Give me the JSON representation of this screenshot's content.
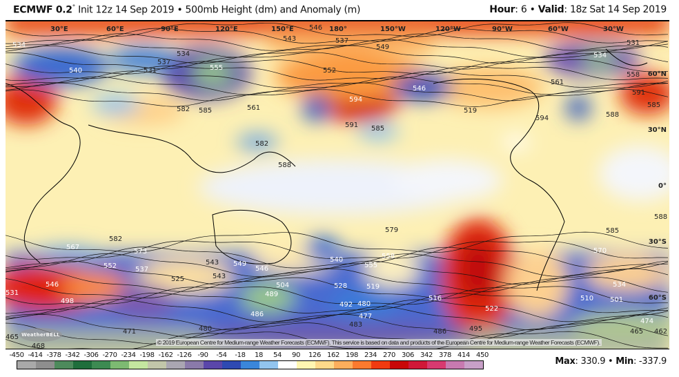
{
  "header": {
    "model": "ECMWF 0.2",
    "degree": "°",
    "init": " Init 12z 14 Sep 2019 • 500mb Height (dm) and Anomaly (m)",
    "hour_label": "Hour",
    "hour_value": ": 6 • ",
    "valid_label": "Valid",
    "valid_value": ": 18z Sat 14 Sep 2019"
  },
  "map": {
    "longitude_labels": [
      "30°E",
      "60°E",
      "90°E",
      "120°E",
      "150°E",
      "180°",
      "150°W",
      "120°W",
      "90°W",
      "60°W",
      "30°W"
    ],
    "latitude_labels": [
      "60°N",
      "30°N",
      "0°",
      "30°S",
      "60°S"
    ],
    "contour_labels": [
      "534",
      "540",
      "537",
      "534",
      "531",
      "555",
      "543",
      "546",
      "537",
      "549",
      "552",
      "594",
      "591",
      "585",
      "582",
      "588",
      "546",
      "519",
      "534",
      "531",
      "561",
      "558",
      "591",
      "585",
      "588",
      "594",
      "582",
      "585",
      "579",
      "582",
      "567",
      "552",
      "573",
      "537",
      "543",
      "549",
      "546",
      "525",
      "504",
      "489",
      "486",
      "480",
      "471",
      "468",
      "465",
      "498",
      "531",
      "546",
      "561",
      "555",
      "558",
      "528",
      "519",
      "492",
      "480",
      "477",
      "483",
      "486",
      "495",
      "522",
      "516",
      "510",
      "501",
      "534",
      "474",
      "462",
      "465",
      "570",
      "585",
      "588",
      "543",
      "540"
    ],
    "copyright": "© 2019 European Centre for Medium-range Weather Forecasts (ECMWF). This service is based on data and products of the European Centre for Medium-range Weather Forecasts (ECMWF).",
    "logo": "WeatherBELL"
  },
  "colorbar": {
    "ticks": [
      "-450",
      "-414",
      "-378",
      "-342",
      "-306",
      "-270",
      "-234",
      "-198",
      "-162",
      "-126",
      "-90",
      "-54",
      "-18",
      "18",
      "54",
      "90",
      "126",
      "162",
      "198",
      "234",
      "270",
      "306",
      "342",
      "378",
      "414",
      "450"
    ],
    "colors": [
      "#a9a9a9",
      "#8e8e8e",
      "#4d8a5c",
      "#1f6e3c",
      "#3d8a52",
      "#7dba72",
      "#c4e6a0",
      "#c2c6aa",
      "#aaa6b2",
      "#8a7aaa",
      "#5a46aa",
      "#2e4ab2",
      "#3a86da",
      "#92c4ee",
      "#ffffff",
      "#fff6b2",
      "#fed98a",
      "#fdae5c",
      "#fb7a2e",
      "#f03a10",
      "#c80808",
      "#d01838",
      "#d83a70",
      "#c87ab0",
      "#c8a0c8"
    ]
  },
  "stats": {
    "max_label": "Max",
    "max_value": ": 330.9 • ",
    "min_label": "Min",
    "min_value": ": -337.9"
  }
}
